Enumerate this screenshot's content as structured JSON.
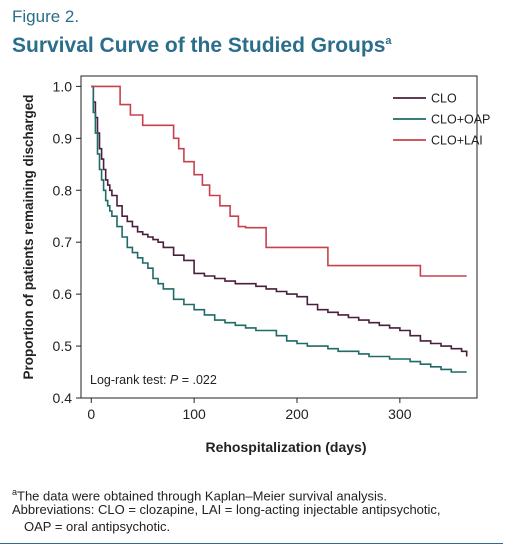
{
  "figure_label": "Figure 2.",
  "figure_title": "Survival Curve of the Studied Groups",
  "title_superscript": "a",
  "footnotes": {
    "marker": "a",
    "source": "The data were obtained through Kaplan–Meier survival analysis.",
    "abbreviations_1": "Abbreviations: CLO = clozapine, LAI = long-acting injectable antipsychotic,",
    "abbreviations_2": "OAP = oral antipsychotic."
  },
  "chart_data": {
    "type": "line",
    "step": true,
    "xlabel": "Rehospitalization (days)",
    "ylabel": "Proportion of patients remaining discharged",
    "xlim": [
      -10,
      375
    ],
    "ylim": [
      0.4,
      1.02
    ],
    "xticks": [
      0,
      100,
      200,
      300
    ],
    "yticks": [
      0.4,
      0.5,
      0.6,
      0.7,
      0.8,
      0.9,
      1.0
    ],
    "ytick_labels": [
      "0.4",
      "0.5",
      "0.6",
      "0.7",
      "0.8",
      "0.9",
      "1.0"
    ],
    "legend_position": "top-right",
    "annotation": "Log-rank test: P = .022",
    "annotation_prefix": "Log-rank test: ",
    "annotation_italic": "P",
    "annotation_suffix": " = .022",
    "colors": {
      "CLO": "#4a1f3c",
      "CLO+OAP": "#1f6b66",
      "CLO+LAI": "#c8404f"
    },
    "series": [
      {
        "name": "CLO",
        "x": [
          0,
          2,
          4,
          6,
          8,
          10,
          12,
          14,
          16,
          18,
          20,
          25,
          30,
          35,
          40,
          45,
          50,
          55,
          60,
          65,
          70,
          80,
          90,
          100,
          110,
          120,
          130,
          140,
          150,
          160,
          170,
          180,
          190,
          200,
          210,
          220,
          230,
          240,
          250,
          260,
          270,
          280,
          290,
          300,
          310,
          320,
          330,
          340,
          350,
          360,
          365
        ],
        "y": [
          1.0,
          0.97,
          0.94,
          0.91,
          0.88,
          0.86,
          0.84,
          0.82,
          0.81,
          0.8,
          0.79,
          0.77,
          0.75,
          0.74,
          0.73,
          0.72,
          0.715,
          0.71,
          0.705,
          0.7,
          0.69,
          0.675,
          0.665,
          0.64,
          0.635,
          0.63,
          0.625,
          0.62,
          0.62,
          0.615,
          0.61,
          0.605,
          0.6,
          0.595,
          0.58,
          0.57,
          0.565,
          0.56,
          0.555,
          0.55,
          0.545,
          0.54,
          0.535,
          0.53,
          0.52,
          0.51,
          0.505,
          0.5,
          0.495,
          0.49,
          0.48
        ]
      },
      {
        "name": "CLO+OAP",
        "x": [
          0,
          2,
          4,
          6,
          8,
          10,
          12,
          14,
          16,
          18,
          20,
          25,
          30,
          35,
          40,
          45,
          50,
          55,
          60,
          65,
          70,
          80,
          90,
          100,
          110,
          120,
          130,
          140,
          150,
          160,
          170,
          180,
          190,
          200,
          210,
          220,
          230,
          240,
          250,
          260,
          270,
          280,
          290,
          300,
          310,
          320,
          330,
          340,
          350,
          360,
          365
        ],
        "y": [
          1.0,
          0.95,
          0.91,
          0.87,
          0.84,
          0.82,
          0.8,
          0.78,
          0.77,
          0.76,
          0.75,
          0.73,
          0.71,
          0.69,
          0.68,
          0.67,
          0.66,
          0.65,
          0.63,
          0.62,
          0.61,
          0.59,
          0.58,
          0.57,
          0.56,
          0.55,
          0.545,
          0.54,
          0.535,
          0.53,
          0.53,
          0.52,
          0.51,
          0.505,
          0.5,
          0.5,
          0.495,
          0.49,
          0.49,
          0.485,
          0.48,
          0.48,
          0.475,
          0.475,
          0.47,
          0.465,
          0.46,
          0.455,
          0.45,
          0.45,
          0.45
        ]
      },
      {
        "name": "CLO+LAI",
        "x": [
          0,
          10,
          28,
          38,
          50,
          80,
          85,
          90,
          100,
          108,
          115,
          125,
          135,
          143,
          150,
          170,
          230,
          320,
          365
        ],
        "y": [
          1.0,
          1.0,
          0.965,
          0.945,
          0.925,
          0.9,
          0.88,
          0.855,
          0.83,
          0.81,
          0.79,
          0.77,
          0.75,
          0.73,
          0.728,
          0.69,
          0.655,
          0.635,
          0.635
        ]
      }
    ]
  }
}
